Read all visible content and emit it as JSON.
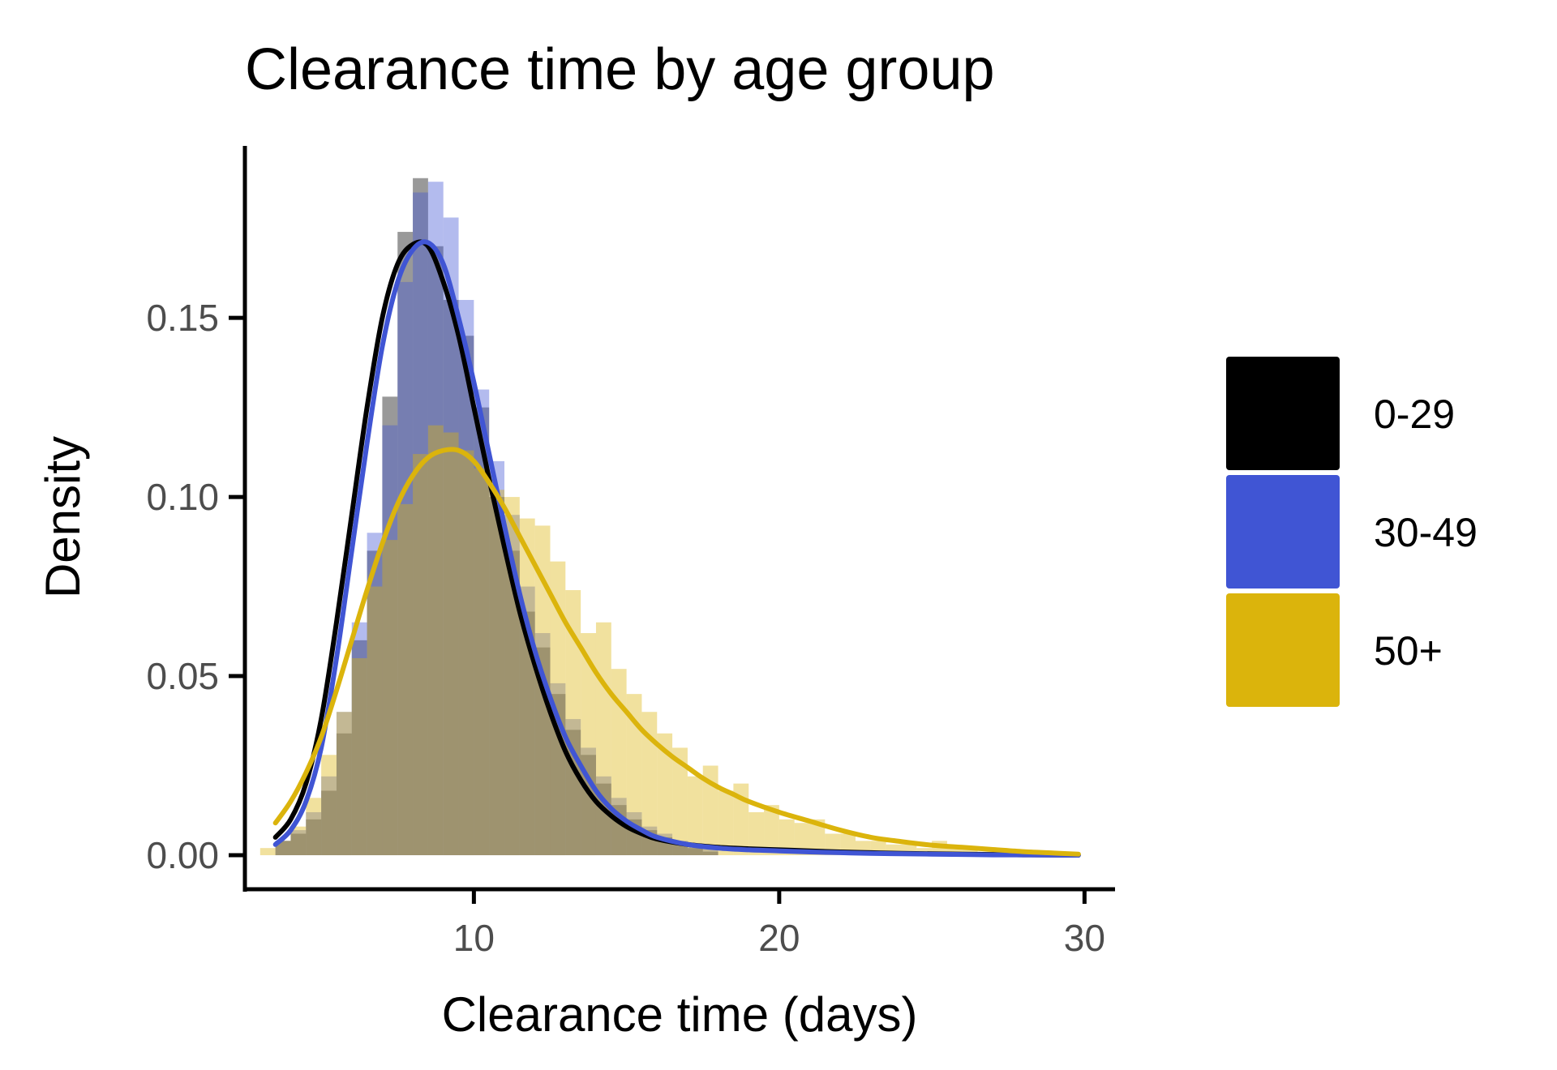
{
  "chart_data": {
    "type": "histogram+density",
    "title": "Clearance time by age group",
    "xlabel": "Clearance time (days)",
    "ylabel": "Density",
    "xlim": [
      2.5,
      31
    ],
    "ylim": [
      -0.0095,
      0.198
    ],
    "x_ticks": [
      {
        "value": 10,
        "label": "10"
      },
      {
        "value": 20,
        "label": "20"
      },
      {
        "value": 30,
        "label": "30"
      }
    ],
    "y_ticks": [
      {
        "value": 0.0,
        "label": "0.00"
      },
      {
        "value": 0.05,
        "label": "0.05"
      },
      {
        "value": 0.1,
        "label": "0.10"
      },
      {
        "value": 0.15,
        "label": "0.15"
      }
    ],
    "grid": false,
    "legend_position": "right",
    "series": [
      {
        "name": "0-29",
        "color": "#000000",
        "bins": [
          [
            3.5,
            4.0,
            0.004
          ],
          [
            4.0,
            4.5,
            0.006
          ],
          [
            4.5,
            5.0,
            0.01
          ],
          [
            5.0,
            5.5,
            0.018
          ],
          [
            5.5,
            6.0,
            0.034
          ],
          [
            6.0,
            6.5,
            0.06
          ],
          [
            6.5,
            7.0,
            0.085
          ],
          [
            7.0,
            7.5,
            0.128
          ],
          [
            7.5,
            8.0,
            0.174
          ],
          [
            8.0,
            8.5,
            0.189
          ],
          [
            8.5,
            9.0,
            0.17
          ],
          [
            9.0,
            9.5,
            0.155
          ],
          [
            9.5,
            10.0,
            0.145
          ],
          [
            10.0,
            10.5,
            0.125
          ],
          [
            10.5,
            11.0,
            0.1
          ],
          [
            11.0,
            11.5,
            0.085
          ],
          [
            11.5,
            12.0,
            0.068
          ],
          [
            12.0,
            12.5,
            0.058
          ],
          [
            12.5,
            13.0,
            0.045
          ],
          [
            13.0,
            13.5,
            0.035
          ],
          [
            13.5,
            14.0,
            0.028
          ],
          [
            14.0,
            14.5,
            0.02
          ],
          [
            14.5,
            15.0,
            0.014
          ],
          [
            15.0,
            15.5,
            0.01
          ],
          [
            15.5,
            16.0,
            0.007
          ],
          [
            16.0,
            16.5,
            0.005
          ],
          [
            16.5,
            17.0,
            0.003
          ],
          [
            17.0,
            17.5,
            0.002
          ],
          [
            17.5,
            18.0,
            0.001
          ]
        ],
        "density": [
          [
            3.5,
            0.005
          ],
          [
            4.0,
            0.01
          ],
          [
            4.5,
            0.02
          ],
          [
            5.0,
            0.038
          ],
          [
            5.5,
            0.065
          ],
          [
            6.0,
            0.095
          ],
          [
            6.5,
            0.125
          ],
          [
            7.0,
            0.15
          ],
          [
            7.5,
            0.165
          ],
          [
            8.0,
            0.1705
          ],
          [
            8.5,
            0.17
          ],
          [
            9.0,
            0.16
          ],
          [
            9.5,
            0.145
          ],
          [
            10.0,
            0.125
          ],
          [
            10.5,
            0.105
          ],
          [
            11.0,
            0.086
          ],
          [
            11.5,
            0.068
          ],
          [
            12.0,
            0.053
          ],
          [
            12.5,
            0.04
          ],
          [
            13.0,
            0.029
          ],
          [
            13.5,
            0.021
          ],
          [
            14.0,
            0.015
          ],
          [
            14.5,
            0.011
          ],
          [
            15.0,
            0.008
          ],
          [
            15.5,
            0.006
          ],
          [
            16.0,
            0.0045
          ],
          [
            17.0,
            0.003
          ],
          [
            18.0,
            0.0022
          ],
          [
            19.0,
            0.0018
          ],
          [
            20.0,
            0.0015
          ],
          [
            21.0,
            0.0012
          ],
          [
            22.0,
            0.0009
          ],
          [
            23.0,
            0.0007
          ],
          [
            24.0,
            0.0005
          ],
          [
            25.0,
            0.0004
          ],
          [
            26.0,
            0.0003
          ],
          [
            27.0,
            0.0002
          ],
          [
            28.0,
            0.0001
          ],
          [
            29.8,
            0.0
          ]
        ]
      },
      {
        "name": "30-49",
        "color": "#4055d4",
        "bins": [
          [
            3.5,
            4.0,
            0.004
          ],
          [
            4.0,
            4.5,
            0.007
          ],
          [
            4.5,
            5.0,
            0.012
          ],
          [
            5.0,
            5.5,
            0.022
          ],
          [
            5.5,
            6.0,
            0.04
          ],
          [
            6.0,
            6.5,
            0.065
          ],
          [
            6.5,
            7.0,
            0.09
          ],
          [
            7.0,
            7.5,
            0.12
          ],
          [
            7.5,
            8.0,
            0.16
          ],
          [
            8.0,
            8.5,
            0.185
          ],
          [
            8.5,
            9.0,
            0.188
          ],
          [
            9.0,
            9.5,
            0.178
          ],
          [
            9.5,
            10.0,
            0.155
          ],
          [
            10.0,
            10.5,
            0.13
          ],
          [
            10.5,
            11.0,
            0.11
          ],
          [
            11.0,
            11.5,
            0.095
          ],
          [
            11.5,
            12.0,
            0.075
          ],
          [
            12.0,
            12.5,
            0.062
          ],
          [
            12.5,
            13.0,
            0.048
          ],
          [
            13.0,
            13.5,
            0.038
          ],
          [
            13.5,
            14.0,
            0.03
          ],
          [
            14.0,
            14.5,
            0.022
          ],
          [
            14.5,
            15.0,
            0.016
          ],
          [
            15.0,
            15.5,
            0.012
          ],
          [
            15.5,
            16.0,
            0.008
          ],
          [
            16.0,
            16.5,
            0.006
          ],
          [
            16.5,
            17.0,
            0.004
          ],
          [
            17.0,
            17.5,
            0.003
          ],
          [
            17.5,
            18.0,
            0.002
          ]
        ],
        "density": [
          [
            3.5,
            0.003
          ],
          [
            4.0,
            0.007
          ],
          [
            4.5,
            0.015
          ],
          [
            5.0,
            0.03
          ],
          [
            5.5,
            0.055
          ],
          [
            6.0,
            0.085
          ],
          [
            6.5,
            0.115
          ],
          [
            7.0,
            0.142
          ],
          [
            7.5,
            0.16
          ],
          [
            8.0,
            0.169
          ],
          [
            8.5,
            0.171
          ],
          [
            9.0,
            0.165
          ],
          [
            9.5,
            0.15
          ],
          [
            10.0,
            0.132
          ],
          [
            10.5,
            0.112
          ],
          [
            11.0,
            0.092
          ],
          [
            11.5,
            0.073
          ],
          [
            12.0,
            0.057
          ],
          [
            12.5,
            0.044
          ],
          [
            13.0,
            0.033
          ],
          [
            13.5,
            0.025
          ],
          [
            14.0,
            0.018
          ],
          [
            14.5,
            0.013
          ],
          [
            15.0,
            0.0095
          ],
          [
            15.5,
            0.007
          ],
          [
            16.0,
            0.005
          ],
          [
            17.0,
            0.003
          ],
          [
            18.0,
            0.002
          ],
          [
            19.0,
            0.0015
          ],
          [
            20.0,
            0.0012
          ],
          [
            21.0,
            0.0009
          ],
          [
            22.0,
            0.0007
          ],
          [
            23.0,
            0.0005
          ],
          [
            24.0,
            0.0004
          ],
          [
            25.0,
            0.0003
          ],
          [
            26.0,
            0.0002
          ],
          [
            27.0,
            0.0001
          ],
          [
            28.0,
            0.0001
          ],
          [
            29.8,
            0.0
          ]
        ]
      },
      {
        "name": "50+",
        "color": "#dbb40c",
        "bins": [
          [
            3.0,
            3.5,
            0.002
          ],
          [
            3.5,
            4.0,
            0.004
          ],
          [
            4.0,
            4.5,
            0.008
          ],
          [
            4.5,
            5.0,
            0.016
          ],
          [
            5.0,
            5.5,
            0.028
          ],
          [
            5.5,
            6.0,
            0.04
          ],
          [
            6.0,
            6.5,
            0.055
          ],
          [
            6.5,
            7.0,
            0.075
          ],
          [
            7.0,
            7.5,
            0.088
          ],
          [
            7.5,
            8.0,
            0.098
          ],
          [
            8.0,
            8.5,
            0.112
          ],
          [
            8.5,
            9.0,
            0.12
          ],
          [
            9.0,
            9.5,
            0.118
          ],
          [
            9.5,
            10.0,
            0.113
          ],
          [
            10.0,
            10.5,
            0.108
          ],
          [
            10.5,
            11.0,
            0.102
          ],
          [
            11.0,
            11.5,
            0.1
          ],
          [
            11.5,
            12.0,
            0.094
          ],
          [
            12.0,
            12.5,
            0.092
          ],
          [
            12.5,
            13.0,
            0.082
          ],
          [
            13.0,
            13.5,
            0.074
          ],
          [
            13.5,
            14.0,
            0.062
          ],
          [
            14.0,
            14.5,
            0.065
          ],
          [
            14.5,
            15.0,
            0.052
          ],
          [
            15.0,
            15.5,
            0.045
          ],
          [
            15.5,
            16.0,
            0.04
          ],
          [
            16.0,
            16.5,
            0.034
          ],
          [
            16.5,
            17.0,
            0.03
          ],
          [
            17.0,
            17.5,
            0.022
          ],
          [
            17.5,
            18.0,
            0.025
          ],
          [
            18.0,
            18.5,
            0.018
          ],
          [
            18.5,
            19.0,
            0.02
          ],
          [
            19.0,
            19.5,
            0.012
          ],
          [
            19.5,
            20.0,
            0.014
          ],
          [
            20.0,
            20.5,
            0.01
          ],
          [
            20.5,
            21.0,
            0.009
          ],
          [
            21.0,
            21.5,
            0.01
          ],
          [
            21.5,
            22.0,
            0.006
          ],
          [
            22.0,
            22.5,
            0.006
          ],
          [
            22.5,
            23.0,
            0.004
          ],
          [
            23.0,
            23.5,
            0.004
          ],
          [
            23.5,
            24.0,
            0.003
          ],
          [
            24.0,
            24.5,
            0.003
          ],
          [
            24.5,
            25.0,
            0.002
          ],
          [
            25.0,
            25.5,
            0.004
          ],
          [
            25.5,
            26.0,
            0.002
          ],
          [
            26.0,
            26.5,
            0.002
          ],
          [
            26.5,
            27.0,
            0.001
          ],
          [
            27.0,
            27.5,
            0.001
          ],
          [
            27.5,
            28.0,
            0.001
          ],
          [
            28.0,
            28.5,
            0.001
          ],
          [
            28.5,
            29.0,
            0.001
          ],
          [
            29.0,
            29.5,
            0.001
          ]
        ],
        "density": [
          [
            3.5,
            0.009
          ],
          [
            4.0,
            0.015
          ],
          [
            4.5,
            0.023
          ],
          [
            5.0,
            0.033
          ],
          [
            5.5,
            0.046
          ],
          [
            6.0,
            0.06
          ],
          [
            6.5,
            0.074
          ],
          [
            7.0,
            0.087
          ],
          [
            7.5,
            0.098
          ],
          [
            8.0,
            0.106
          ],
          [
            8.5,
            0.111
          ],
          [
            9.0,
            0.113
          ],
          [
            9.5,
            0.113
          ],
          [
            10.0,
            0.11
          ],
          [
            10.5,
            0.104
          ],
          [
            11.0,
            0.097
          ],
          [
            11.5,
            0.089
          ],
          [
            12.0,
            0.081
          ],
          [
            12.5,
            0.073
          ],
          [
            13.0,
            0.065
          ],
          [
            13.5,
            0.058
          ],
          [
            14.0,
            0.051
          ],
          [
            14.5,
            0.045
          ],
          [
            15.0,
            0.04
          ],
          [
            15.5,
            0.035
          ],
          [
            16.0,
            0.031
          ],
          [
            16.5,
            0.0275
          ],
          [
            17.0,
            0.0245
          ],
          [
            17.5,
            0.0215
          ],
          [
            18.0,
            0.019
          ],
          [
            18.5,
            0.017
          ],
          [
            19.0,
            0.015
          ],
          [
            20.0,
            0.012
          ],
          [
            21.0,
            0.0095
          ],
          [
            22.0,
            0.007
          ],
          [
            23.0,
            0.005
          ],
          [
            24.0,
            0.0038
          ],
          [
            25.0,
            0.0028
          ],
          [
            26.0,
            0.0022
          ],
          [
            27.0,
            0.0016
          ],
          [
            28.0,
            0.001
          ],
          [
            29.0,
            0.0006
          ],
          [
            29.8,
            0.0003
          ]
        ]
      }
    ]
  }
}
